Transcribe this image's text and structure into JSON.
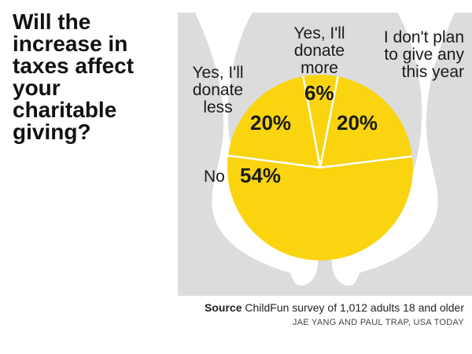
{
  "title": "Will the increase in taxes affect your charitable giving?",
  "source_label": "Source",
  "source_text": "ChildFun survey of 1,012 adults 18 and older",
  "credit": "JAE YANG AND PAUL TRAP, USA TODAY",
  "colors": {
    "pie": "#f9d40f",
    "hands": "#ffffff",
    "panel": "#dcdcdc",
    "divider": "#ffffff"
  },
  "chart_data": {
    "type": "pie",
    "title": "Will the increase in taxes affect your charitable giving?",
    "slices": [
      {
        "label": "No",
        "value": 54,
        "display": "54%"
      },
      {
        "label": "Yes, I'll donate less",
        "value": 20,
        "display": "20%"
      },
      {
        "label": "Yes, I'll donate more",
        "value": 6,
        "display": "6%"
      },
      {
        "label": "I don't plan to give any this year",
        "value": 20,
        "display": "20%"
      }
    ]
  }
}
